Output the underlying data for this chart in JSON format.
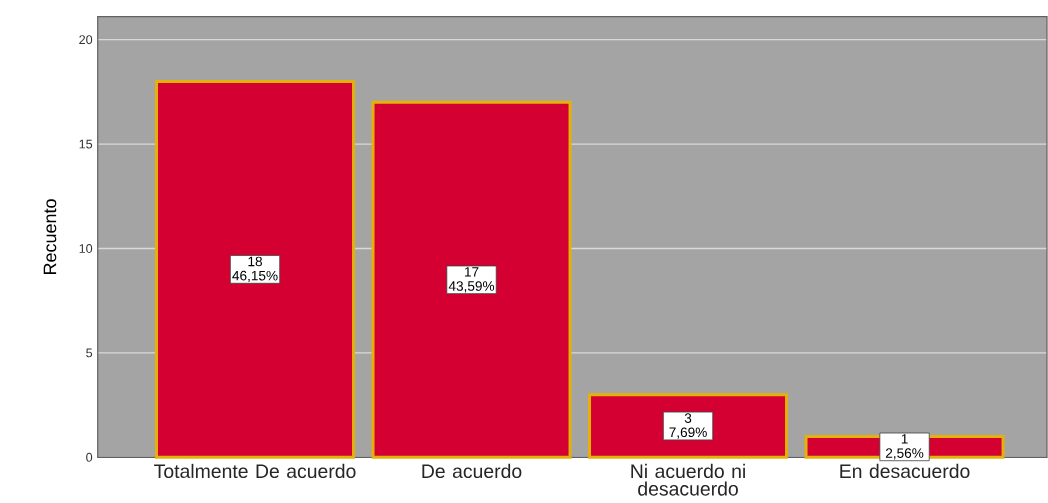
{
  "chart_data": {
    "type": "bar",
    "ylabel": "Recuento",
    "categories": [
      "Totalmente De acuerdo",
      "De acuerdo",
      "Ni acuerdo ni desacuerdo",
      "En desacuerdo"
    ],
    "values": [
      18,
      17,
      3,
      1
    ],
    "color": "#d50032",
    "value_labels": [
      "18 46,15%",
      "17 43,59%",
      "3 7,69%",
      "1 2,56%"
    ],
    "ylim": [
      0,
      21.1
    ],
    "yticks": [
      0,
      5,
      10,
      15,
      20
    ],
    "grid": "y"
  }
}
